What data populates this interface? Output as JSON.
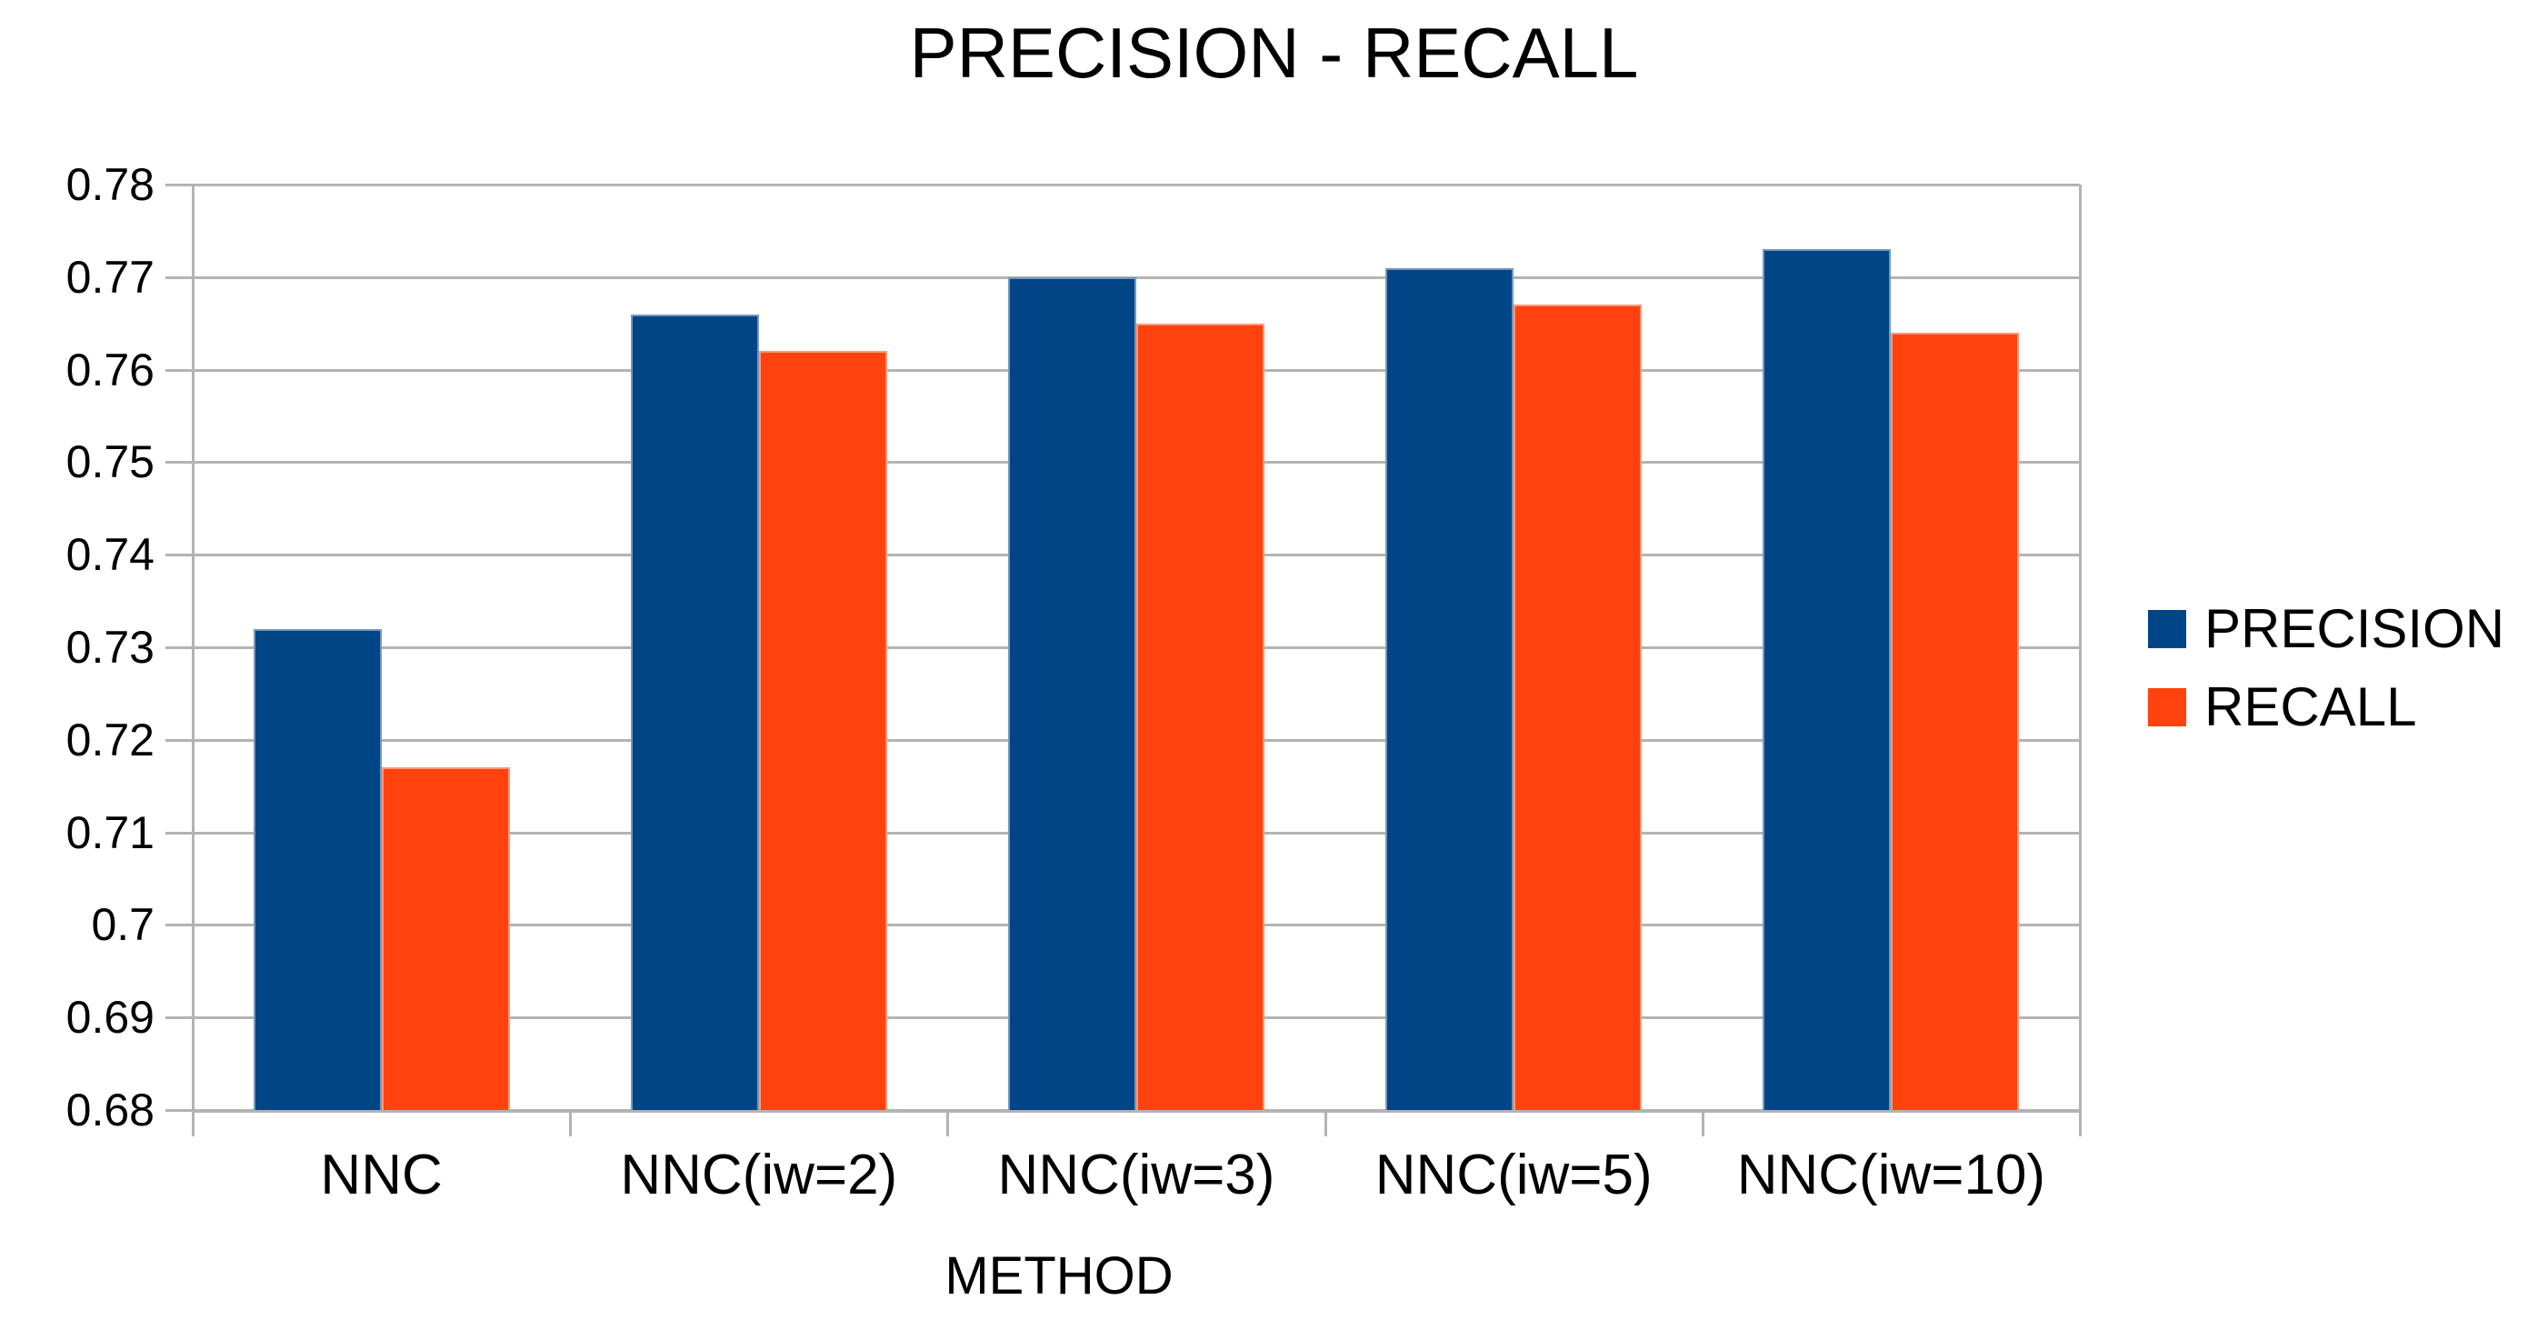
{
  "chart_data": {
    "type": "bar",
    "title": "PRECISION - RECALL",
    "xlabel": "METHOD",
    "ylabel": "",
    "categories": [
      "NNC",
      "NNC(iw=2)",
      "NNC(iw=3)",
      "NNC(iw=5)",
      "NNC(iw=10)"
    ],
    "series": [
      {
        "name": "PRECISION",
        "color": "#004586",
        "values": [
          0.732,
          0.766,
          0.77,
          0.771,
          0.773
        ]
      },
      {
        "name": "RECALL",
        "color": "#ff420e",
        "values": [
          0.717,
          0.762,
          0.765,
          0.767,
          0.764
        ]
      }
    ],
    "ylim": [
      0.68,
      0.78
    ],
    "y_tick_step": 0.01,
    "y_tick_labels": [
      "0.68",
      "0.69",
      "0.7",
      "0.71",
      "0.72",
      "0.73",
      "0.74",
      "0.75",
      "0.76",
      "0.77",
      "0.78"
    ],
    "grid": "horizontal",
    "legend_position": "right",
    "colors": {
      "gridline": "#b3b3b3",
      "axis": "#b3b3b3",
      "text": "#000000",
      "background": "#ffffff"
    }
  }
}
